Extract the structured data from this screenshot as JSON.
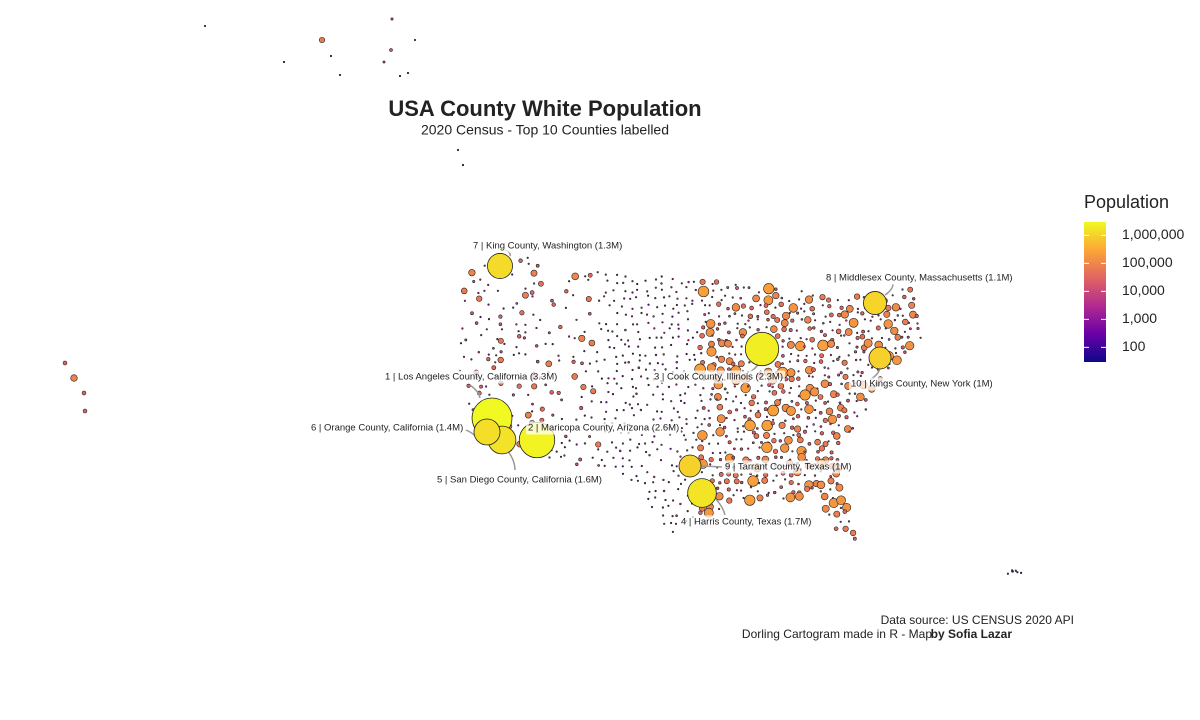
{
  "title": "USA County White Population",
  "subtitle": "2020 Census - Top 10 Counties labelled",
  "legend": {
    "title": "Population",
    "scale": "log",
    "range": [
      30,
      3000000
    ],
    "colors": [
      "#0d0887",
      "#6a00a8",
      "#b12a90",
      "#e16462",
      "#fca636",
      "#f0f921"
    ],
    "ticks": [
      {
        "value": 1000000,
        "label": "1,000,000"
      },
      {
        "value": 100000,
        "label": "100,000"
      },
      {
        "value": 10000,
        "label": "10,000"
      },
      {
        "value": 1000,
        "label": "1,000"
      },
      100
    ]
  },
  "labels": [
    {
      "text": "1 | Los Angeles County, California (3.3M)",
      "value": 3300000
    },
    {
      "text": "2 | Maricopa County, Arizona (2.6M)",
      "value": 2600000
    },
    {
      "text": "3 | Cook County, Illinois (2.3M)",
      "value": 2300000
    },
    {
      "text": "4 | Harris County, Texas (1.7M)",
      "value": 1700000
    },
    {
      "text": "5 | San Diego County, California (1.6M)",
      "value": 1600000
    },
    {
      "text": "6 | Orange County, California (1.4M)",
      "value": 1400000
    },
    {
      "text": "7 | King County, Washington (1.3M)",
      "value": 1300000
    },
    {
      "text": "8 | Middlesex County, Massachusetts (1.1M)",
      "value": 1100000
    },
    {
      "text": "9 | Tarrant County, Texas (1M)",
      "value": 1000000
    },
    {
      "text": "10 | Kings County, New York (1M)",
      "value": 1000000
    }
  ],
  "caption": {
    "source": "Data source: US CENSUS 2020 API",
    "credit": "Dorling Cartogram made in R - Map",
    "author": "by Sofia Lazar"
  }
}
